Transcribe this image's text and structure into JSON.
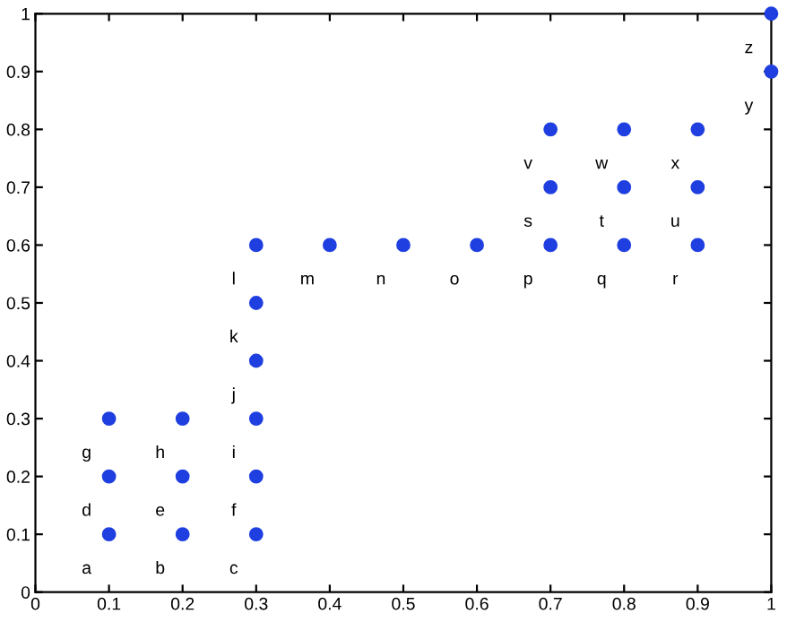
{
  "chart_data": {
    "type": "scatter",
    "x": [
      0.1,
      0.2,
      0.3,
      0.1,
      0.2,
      0.3,
      0.1,
      0.2,
      0.3,
      0.3,
      0.3,
      0.3,
      0.4,
      0.5,
      0.6,
      0.7,
      0.8,
      0.9,
      0.7,
      0.8,
      0.9,
      0.7,
      0.8,
      0.9,
      1,
      1
    ],
    "series": [
      {
        "color": "#1f3fe0",
        "values": [
          0.1,
          0.1,
          0.1,
          0.2,
          0.2,
          0.2,
          0.3,
          0.3,
          0.3,
          0.4,
          0.5,
          0.6,
          0.6,
          0.6,
          0.6,
          0.6,
          0.6,
          0.6,
          0.7,
          0.7,
          0.7,
          0.8,
          0.8,
          0.8,
          0.9,
          1
        ]
      }
    ],
    "annotations": [
      {
        "text": "a",
        "x": 0.1,
        "y": 0.1
      },
      {
        "text": "b",
        "x": 0.2,
        "y": 0.1
      },
      {
        "text": "c",
        "x": 0.3,
        "y": 0.1
      },
      {
        "text": "d",
        "x": 0.1,
        "y": 0.2
      },
      {
        "text": "e",
        "x": 0.2,
        "y": 0.2
      },
      {
        "text": "f",
        "x": 0.3,
        "y": 0.2
      },
      {
        "text": "g",
        "x": 0.1,
        "y": 0.3
      },
      {
        "text": "h",
        "x": 0.2,
        "y": 0.3
      },
      {
        "text": "i",
        "x": 0.3,
        "y": 0.3
      },
      {
        "text": "j",
        "x": 0.3,
        "y": 0.4
      },
      {
        "text": "k",
        "x": 0.3,
        "y": 0.5
      },
      {
        "text": "l",
        "x": 0.3,
        "y": 0.6
      },
      {
        "text": "m",
        "x": 0.4,
        "y": 0.6
      },
      {
        "text": "n",
        "x": 0.5,
        "y": 0.6
      },
      {
        "text": "o",
        "x": 0.6,
        "y": 0.6
      },
      {
        "text": "p",
        "x": 0.7,
        "y": 0.6
      },
      {
        "text": "q",
        "x": 0.8,
        "y": 0.6
      },
      {
        "text": "r",
        "x": 0.9,
        "y": 0.6
      },
      {
        "text": "s",
        "x": 0.7,
        "y": 0.7
      },
      {
        "text": "t",
        "x": 0.8,
        "y": 0.7
      },
      {
        "text": "u",
        "x": 0.9,
        "y": 0.7
      },
      {
        "text": "v",
        "x": 0.7,
        "y": 0.8
      },
      {
        "text": "w",
        "x": 0.8,
        "y": 0.8
      },
      {
        "text": "x",
        "x": 0.9,
        "y": 0.8
      },
      {
        "text": "y",
        "x": 1,
        "y": 0.9
      },
      {
        "text": "z",
        "x": 1,
        "y": 1
      }
    ],
    "xlim": [
      0,
      1
    ],
    "ylim": [
      0,
      1
    ],
    "xticks": [
      0,
      0.1,
      0.2,
      0.3,
      0.4,
      0.5,
      0.6,
      0.7,
      0.8,
      0.9,
      1
    ],
    "yticks": [
      0,
      0.1,
      0.2,
      0.3,
      0.4,
      0.5,
      0.6,
      0.7,
      0.8,
      0.9,
      1
    ],
    "grid": false,
    "marker": "circle"
  }
}
